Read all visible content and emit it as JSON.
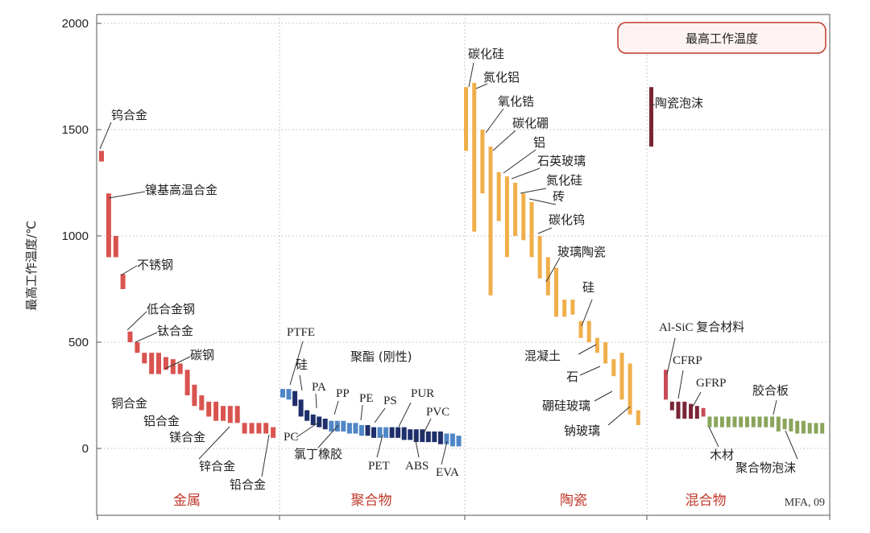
{
  "chart_data": {
    "type": "bar",
    "subtype": "range-bar",
    "legend_title": "最高工作温度",
    "legend_placement": "top-right",
    "ylabel": "最高工作温度/℃",
    "ylim": [
      -300,
      2000
    ],
    "yticks": [
      0,
      500,
      1000,
      1500,
      2000
    ],
    "credit": "MFA, 09",
    "groups": [
      {
        "key": "metal",
        "label": "金属",
        "color": "#d9534f",
        "color_dark": "#d9534f"
      },
      {
        "key": "polymer",
        "label": "聚合物",
        "color": "#3d73b8",
        "color_dark": "#1c2c63"
      },
      {
        "key": "ceramic",
        "label": "陶瓷",
        "color": "#f0ae4a",
        "color_dark": "#f0ae4a"
      },
      {
        "key": "hybrid",
        "label": "混合物",
        "color": "#8aa55b",
        "color_dark": "#6e1f32"
      }
    ],
    "bars": [
      {
        "group": "metal",
        "low": 1350,
        "high": 1400
      },
      {
        "group": "metal",
        "low": 900,
        "high": 1200
      },
      {
        "group": "metal",
        "low": 900,
        "high": 1000
      },
      {
        "group": "metal",
        "low": 750,
        "high": 820
      },
      {
        "group": "metal",
        "low": 500,
        "high": 550
      },
      {
        "group": "metal",
        "low": 450,
        "high": 500
      },
      {
        "group": "metal",
        "low": 400,
        "high": 450
      },
      {
        "group": "metal",
        "low": 350,
        "high": 450
      },
      {
        "group": "metal",
        "low": 350,
        "high": 450
      },
      {
        "group": "metal",
        "low": 370,
        "high": 430
      },
      {
        "group": "metal",
        "low": 350,
        "high": 420
      },
      {
        "group": "metal",
        "low": 350,
        "high": 400
      },
      {
        "group": "metal",
        "low": 250,
        "high": 370
      },
      {
        "group": "metal",
        "low": 200,
        "high": 300
      },
      {
        "group": "metal",
        "low": 180,
        "high": 250
      },
      {
        "group": "metal",
        "low": 150,
        "high": 220
      },
      {
        "group": "metal",
        "low": 130,
        "high": 220
      },
      {
        "group": "metal",
        "low": 130,
        "high": 200
      },
      {
        "group": "metal",
        "low": 120,
        "high": 200
      },
      {
        "group": "metal",
        "low": 120,
        "high": 200
      },
      {
        "group": "metal",
        "low": 70,
        "high": 120
      },
      {
        "group": "metal",
        "low": 70,
        "high": 120
      },
      {
        "group": "metal",
        "low": 70,
        "high": 120
      },
      {
        "group": "metal",
        "low": 70,
        "high": 120
      },
      {
        "group": "metal",
        "low": 50,
        "high": 100
      },
      {
        "group": "polymer",
        "low": 240,
        "high": 280,
        "shade": "light"
      },
      {
        "group": "polymer",
        "low": 230,
        "high": 280,
        "shade": "light"
      },
      {
        "group": "polymer",
        "low": 200,
        "high": 270,
        "shade": "dark"
      },
      {
        "group": "polymer",
        "low": 150,
        "high": 230,
        "shade": "dark"
      },
      {
        "group": "polymer",
        "low": 130,
        "high": 180,
        "shade": "dark"
      },
      {
        "group": "polymer",
        "low": 110,
        "high": 160,
        "shade": "dark"
      },
      {
        "group": "polymer",
        "low": 100,
        "high": 150,
        "shade": "dark"
      },
      {
        "group": "polymer",
        "low": 90,
        "high": 140,
        "shade": "dark"
      },
      {
        "group": "polymer",
        "low": 80,
        "high": 130,
        "shade": "light"
      },
      {
        "group": "polymer",
        "low": 80,
        "high": 130,
        "shade": "light"
      },
      {
        "group": "polymer",
        "low": 80,
        "high": 130,
        "shade": "light"
      },
      {
        "group": "polymer",
        "low": 70,
        "high": 120,
        "shade": "light"
      },
      {
        "group": "polymer",
        "low": 70,
        "high": 120,
        "shade": "light"
      },
      {
        "group": "polymer",
        "low": 60,
        "high": 110,
        "shade": "light"
      },
      {
        "group": "polymer",
        "low": 60,
        "high": 110,
        "shade": "dark"
      },
      {
        "group": "polymer",
        "low": 50,
        "high": 100,
        "shade": "dark"
      },
      {
        "group": "polymer",
        "low": 50,
        "high": 100,
        "shade": "light"
      },
      {
        "group": "polymer",
        "low": 50,
        "high": 100,
        "shade": "light"
      },
      {
        "group": "polymer",
        "low": 50,
        "high": 100,
        "shade": "dark"
      },
      {
        "group": "polymer",
        "low": 50,
        "high": 100,
        "shade": "dark"
      },
      {
        "group": "polymer",
        "low": 40,
        "high": 100,
        "shade": "dark"
      },
      {
        "group": "polymer",
        "low": 40,
        "high": 90,
        "shade": "dark"
      },
      {
        "group": "polymer",
        "low": 30,
        "high": 90,
        "shade": "dark"
      },
      {
        "group": "polymer",
        "low": 30,
        "high": 90,
        "shade": "dark"
      },
      {
        "group": "polymer",
        "low": 30,
        "high": 80,
        "shade": "dark"
      },
      {
        "group": "polymer",
        "low": 30,
        "high": 80,
        "shade": "dark"
      },
      {
        "group": "polymer",
        "low": 20,
        "high": 80,
        "shade": "dark"
      },
      {
        "group": "polymer",
        "low": 20,
        "high": 70,
        "shade": "light"
      },
      {
        "group": "polymer",
        "low": 10,
        "high": 70,
        "shade": "light"
      },
      {
        "group": "polymer",
        "low": 10,
        "high": 60,
        "shade": "light"
      },
      {
        "group": "ceramic",
        "low": 1400,
        "high": 1700
      },
      {
        "group": "ceramic",
        "low": 1020,
        "high": 1720
      },
      {
        "group": "ceramic",
        "low": 1200,
        "high": 1500
      },
      {
        "group": "ceramic",
        "low": 720,
        "high": 1420
      },
      {
        "group": "ceramic",
        "low": 1070,
        "high": 1300
      },
      {
        "group": "ceramic",
        "low": 900,
        "high": 1280
      },
      {
        "group": "ceramic",
        "low": 1000,
        "high": 1250
      },
      {
        "group": "ceramic",
        "low": 980,
        "high": 1200
      },
      {
        "group": "ceramic",
        "low": 900,
        "high": 1160
      },
      {
        "group": "ceramic",
        "low": 800,
        "high": 1000
      },
      {
        "group": "ceramic",
        "low": 720,
        "high": 900
      },
      {
        "group": "ceramic",
        "low": 620,
        "high": 850
      },
      {
        "group": "ceramic",
        "low": 620,
        "high": 700
      },
      {
        "group": "ceramic",
        "low": 630,
        "high": 700
      },
      {
        "group": "ceramic",
        "low": 520,
        "high": 600
      },
      {
        "group": "ceramic",
        "low": 500,
        "high": 600
      },
      {
        "group": "ceramic",
        "low": 450,
        "high": 520
      },
      {
        "group": "ceramic",
        "low": 400,
        "high": 500
      },
      {
        "group": "ceramic",
        "low": 340,
        "high": 420
      },
      {
        "group": "ceramic",
        "low": 230,
        "high": 450
      },
      {
        "group": "ceramic",
        "low": 160,
        "high": 400
      },
      {
        "group": "ceramic",
        "low": 110,
        "high": 180
      },
      {
        "group": "hybrid",
        "low": 1420,
        "high": 1700,
        "shade": "dark"
      },
      {
        "group": "hybrid",
        "low": 230,
        "high": 370,
        "shade": "red"
      },
      {
        "group": "hybrid",
        "low": 180,
        "high": 220,
        "shade": "dark"
      },
      {
        "group": "hybrid",
        "low": 140,
        "high": 220,
        "shade": "dark"
      },
      {
        "group": "hybrid",
        "low": 140,
        "high": 220,
        "shade": "dark"
      },
      {
        "group": "hybrid",
        "low": 140,
        "high": 210,
        "shade": "dark"
      },
      {
        "group": "hybrid",
        "low": 140,
        "high": 200,
        "shade": "dark"
      },
      {
        "group": "hybrid",
        "low": 150,
        "high": 190,
        "shade": "red"
      },
      {
        "group": "hybrid",
        "low": 100,
        "high": 150,
        "shade": "green"
      },
      {
        "group": "hybrid",
        "low": 100,
        "high": 150,
        "shade": "green"
      },
      {
        "group": "hybrid",
        "low": 100,
        "high": 150,
        "shade": "green"
      },
      {
        "group": "hybrid",
        "low": 100,
        "high": 150,
        "shade": "green"
      },
      {
        "group": "hybrid",
        "low": 100,
        "high": 150,
        "shade": "green"
      },
      {
        "group": "hybrid",
        "low": 100,
        "high": 150,
        "shade": "green"
      },
      {
        "group": "hybrid",
        "low": 100,
        "high": 150,
        "shade": "green"
      },
      {
        "group": "hybrid",
        "low": 100,
        "high": 150,
        "shade": "green"
      },
      {
        "group": "hybrid",
        "low": 100,
        "high": 150,
        "shade": "green"
      },
      {
        "group": "hybrid",
        "low": 100,
        "high": 150,
        "shade": "green"
      },
      {
        "group": "hybrid",
        "low": 100,
        "high": 150,
        "shade": "green"
      },
      {
        "group": "hybrid",
        "low": 80,
        "high": 150,
        "shade": "green"
      },
      {
        "group": "hybrid",
        "low": 90,
        "high": 140,
        "shade": "green"
      },
      {
        "group": "hybrid",
        "low": 80,
        "high": 140,
        "shade": "green"
      },
      {
        "group": "hybrid",
        "low": 70,
        "high": 130,
        "shade": "green"
      },
      {
        "group": "hybrid",
        "low": 70,
        "high": 130,
        "shade": "green"
      },
      {
        "group": "hybrid",
        "low": 70,
        "high": 120,
        "shade": "green"
      },
      {
        "group": "hybrid",
        "low": 70,
        "high": 120,
        "shade": "green"
      },
      {
        "group": "hybrid",
        "low": 70,
        "high": 120,
        "shade": "green"
      }
    ],
    "annotations": [
      {
        "text": "钨合金"
      },
      {
        "text": "镍基高温合金"
      },
      {
        "text": "不锈钢"
      },
      {
        "text": "低合金钢"
      },
      {
        "text": "钛合金"
      },
      {
        "text": "碳钢"
      },
      {
        "text": "铜合金"
      },
      {
        "text": "铝合金"
      },
      {
        "text": "镁合金"
      },
      {
        "text": "锌合金"
      },
      {
        "text": "铅合金"
      },
      {
        "text": "PTFE"
      },
      {
        "text": "硅"
      },
      {
        "text": "PA"
      },
      {
        "text": "PP"
      },
      {
        "text": "PE"
      },
      {
        "text": "PS"
      },
      {
        "text": "PUR"
      },
      {
        "text": "PVC"
      },
      {
        "text": "PC"
      },
      {
        "text": "氯丁橡胶"
      },
      {
        "text": "PET"
      },
      {
        "text": "ABS"
      },
      {
        "text": "EVA"
      },
      {
        "text": "聚酯 (刚性)"
      },
      {
        "text": "碳化硅"
      },
      {
        "text": "氮化铝"
      },
      {
        "text": "氧化锆"
      },
      {
        "text": "碳化硼"
      },
      {
        "text": "铝"
      },
      {
        "text": "石英玻璃"
      },
      {
        "text": "氮化硅"
      },
      {
        "text": "砖"
      },
      {
        "text": "碳化钨"
      },
      {
        "text": "玻璃陶瓷"
      },
      {
        "text": "硅"
      },
      {
        "text": "混凝土"
      },
      {
        "text": "石"
      },
      {
        "text": "硼硅玻璃"
      },
      {
        "text": "钠玻璃"
      },
      {
        "text": "陶瓷泡沫"
      },
      {
        "text": "Al-SiC 复合材料"
      },
      {
        "text": "CFRP"
      },
      {
        "text": "GFRP"
      },
      {
        "text": "胶合板"
      },
      {
        "text": "木材"
      },
      {
        "text": "聚合物泡沫"
      }
    ]
  }
}
